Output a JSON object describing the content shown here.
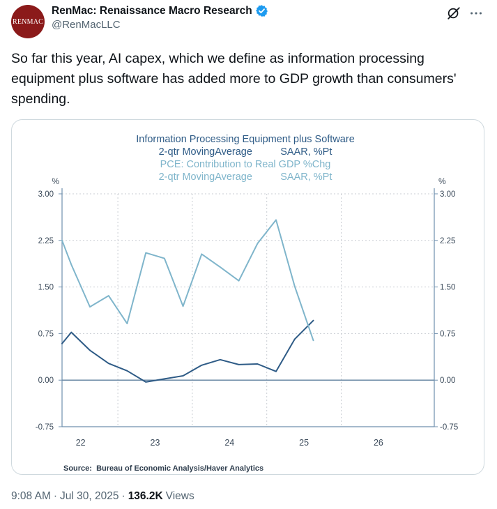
{
  "author": {
    "display_name": "RenMac: Renaissance Macro Research",
    "handle": "@RenMacLLC",
    "avatar_text": "RENMAC",
    "verified": true,
    "avatar_color": "#8b1a1a",
    "verified_color": "#1d9bf0"
  },
  "header_icons": {
    "grok": "grok-icon",
    "more": "more-icon"
  },
  "tweet": {
    "text": "So far this year, AI capex, which we define as information processing equipment plus software has added more to GDP growth than consumers' spending."
  },
  "meta": {
    "time": "9:08 AM",
    "separator_1": "·",
    "date": "Jul 30, 2025",
    "separator_2": "·",
    "views_count": "136.2K",
    "views_label": "Views"
  },
  "chart_data": {
    "type": "line",
    "title_lines": [
      "Information Processing Equipment plus Software",
      "2-qtr MovingAverage          SAAR, %Pt",
      "PCE: Contribution to Real GDP %Chg",
      "2-qtr MovingAverage          SAAR, %Pt"
    ],
    "y_unit_left": "%",
    "y_unit_right": "%",
    "y_ticks": [
      "3.00",
      "2.25",
      "1.50",
      "0.75",
      "0.00",
      "-0.75"
    ],
    "y_tick_values": [
      3.0,
      2.25,
      1.5,
      0.75,
      0.0,
      -0.75
    ],
    "ylim": [
      -0.75,
      3.0
    ],
    "x_ticks": [
      "22",
      "23",
      "24",
      "25",
      "26"
    ],
    "x_range": [
      2021.75,
      2026.75
    ],
    "source": "Source:  Bureau of Economic Analysis/Haver Analytics",
    "grid": true,
    "series": [
      {
        "color": "#2e5b86",
        "x": [
          2021.75,
          2021.875,
          2022.125,
          2022.375,
          2022.625,
          2022.875,
          2023.125,
          2023.375,
          2023.625,
          2023.875,
          2024.125,
          2024.375,
          2024.625,
          2024.875,
          2025.125
        ],
        "y": [
          0.59,
          0.77,
          0.48,
          0.27,
          0.15,
          -0.03,
          0.02,
          0.07,
          0.24,
          0.33,
          0.25,
          0.26,
          0.14,
          0.66,
          0.96
        ]
      },
      {
        "color": "#7fb5cb",
        "x": [
          2021.75,
          2021.875,
          2022.125,
          2022.375,
          2022.625,
          2022.875,
          2023.125,
          2023.375,
          2023.625,
          2023.875,
          2024.125,
          2024.375,
          2024.625,
          2024.875,
          2025.125
        ],
        "y": [
          2.25,
          1.86,
          1.18,
          1.36,
          0.91,
          2.05,
          1.96,
          1.19,
          2.03,
          1.82,
          1.6,
          2.2,
          2.58,
          1.51,
          0.64
        ]
      }
    ]
  }
}
